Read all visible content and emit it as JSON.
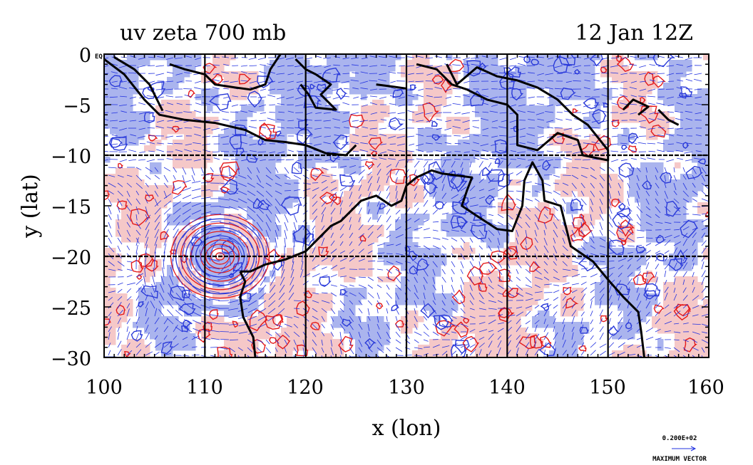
{
  "title_left": "uv zeta 700 mb",
  "title_right": "12 Jan 12Z",
  "xlabel": "x (lon)",
  "ylabel": "y (lat)",
  "x_ticks": [
    "100",
    "110",
    "120",
    "130",
    "140",
    "150",
    "160"
  ],
  "y_ticks": [
    "0",
    "−5",
    "−10",
    "−15",
    "−20",
    "−25",
    "−30"
  ],
  "eq_label": "EQ",
  "vector_key": {
    "value": "0.200E+02",
    "label": "MAXIMUM VECTOR"
  },
  "map": {
    "lon_range": [
      100,
      160
    ],
    "lat_range": [
      -30,
      0
    ],
    "grid_lons": [
      110,
      120,
      130,
      140,
      150
    ],
    "grid_lats": [
      -10,
      -20
    ],
    "cyclone_center": {
      "lon": 111.5,
      "lat": -20
    },
    "colors": {
      "positive_fill": "#f5c8c8",
      "negative_fill": "#aab4ee",
      "positive_contour": "#e41a1a",
      "negative_contour": "#2a3ad8",
      "vectors": "#2030e0",
      "coastline": "#000000"
    }
  }
}
